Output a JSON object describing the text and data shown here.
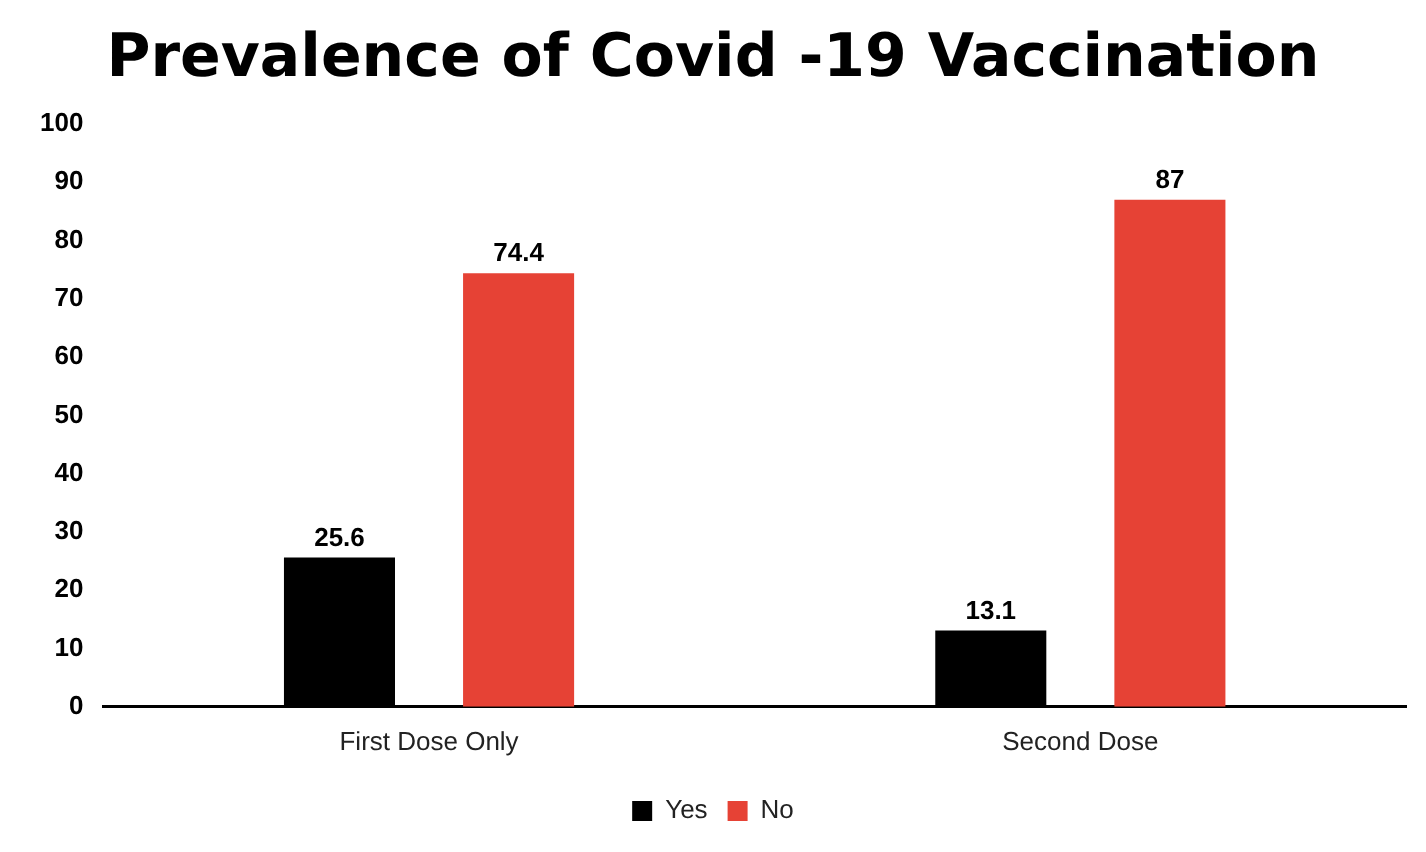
{
  "chart_data": {
    "type": "bar",
    "title": "Prevalence of Covid -19 Vaccination",
    "categories": [
      "First Dose Only",
      "Second Dose"
    ],
    "series": [
      {
        "name": "Yes",
        "color": "#000000",
        "values": [
          25.6,
          13.1
        ]
      },
      {
        "name": "No",
        "color": "#e64235",
        "values": [
          74.4,
          87
        ]
      }
    ],
    "ylim": [
      0,
      100
    ],
    "yticks": [
      0,
      10,
      20,
      30,
      40,
      50,
      60,
      70,
      80,
      90,
      100
    ],
    "grid": false,
    "legend": "bottom",
    "data_labels": true
  }
}
